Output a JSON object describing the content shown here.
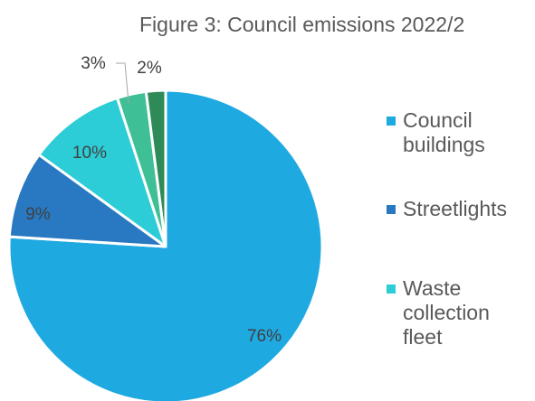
{
  "chart_data": {
    "type": "pie",
    "title": "Figure 3: Council emissions 2022/2",
    "slices": [
      {
        "name": "Council buildings",
        "value": 76,
        "label": "76%",
        "color": "#1fa9e1"
      },
      {
        "name": "Streetlights",
        "value": 9,
        "label": "9%",
        "color": "#2878c2"
      },
      {
        "name": "Waste collection fleet",
        "value": 10,
        "label": "10%",
        "color": "#2ccdd6"
      },
      {
        "name": "",
        "value": 3,
        "label": "3%",
        "color": "#3fbf96"
      },
      {
        "name": "",
        "value": 2,
        "label": "2%",
        "color": "#2e8b57"
      }
    ],
    "legend": [
      {
        "label": "Council buildings",
        "color": "#1fa9e1"
      },
      {
        "label": "Streetlights",
        "color": "#2878c2"
      },
      {
        "label": "Waste collection fleet",
        "color": "#2ccdd6"
      }
    ],
    "legend_position": "right",
    "start": "12 o'clock",
    "direction": "clockwise"
  }
}
